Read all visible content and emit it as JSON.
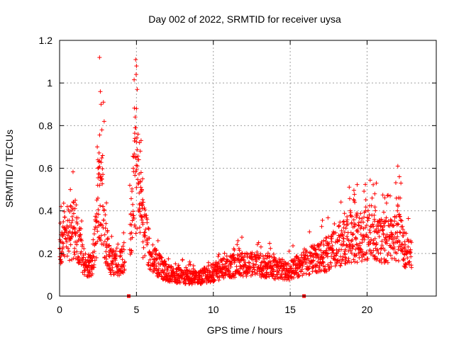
{
  "chart_data": {
    "type": "scatter",
    "title": "Day 002 of 2022, SRMTID for receiver uysa",
    "xlabel": "GPS time / hours",
    "ylabel": "SRMTID / TECUs",
    "xlim": [
      0,
      24.5
    ],
    "ylim": [
      0,
      1.2
    ],
    "xticks": [
      0,
      5,
      10,
      15,
      20
    ],
    "xtick_labels": [
      "0",
      "5",
      "10",
      "15",
      "20"
    ],
    "yticks": [
      0,
      0.2,
      0.4,
      0.6,
      0.8,
      1.0,
      1.2
    ],
    "ytick_labels": [
      "0",
      "0.2",
      "0.4",
      "0.6",
      "0.8",
      "1",
      "1.2"
    ],
    "grid": true,
    "marker": "+",
    "color": "#ff0000",
    "data_gaps_x": [
      4.5,
      15.9
    ],
    "series": [
      {
        "name": "SRMTID",
        "profile_x": [
          0,
          0.3,
          0.7,
          1.0,
          1.4,
          1.8,
          2.1,
          2.4,
          2.6,
          2.75,
          3.0,
          3.3,
          3.6,
          4.0,
          4.4,
          4.7,
          4.85,
          5.0,
          5.2,
          5.5,
          6.0,
          6.5,
          7.0,
          8.0,
          9.0,
          9.5,
          10.0,
          11.0,
          12.0,
          13.0,
          14.0,
          15.0,
          15.8,
          16.5,
          17.5,
          18.5,
          19.0,
          19.5,
          20.0,
          20.5,
          21.0,
          21.5,
          22.0,
          22.5,
          22.9
        ],
        "profile_y": [
          0.2,
          0.27,
          0.3,
          0.32,
          0.2,
          0.13,
          0.16,
          0.3,
          0.55,
          0.45,
          0.25,
          0.17,
          0.16,
          0.16,
          0.2,
          0.35,
          0.6,
          0.55,
          0.4,
          0.3,
          0.18,
          0.14,
          0.11,
          0.09,
          0.085,
          0.1,
          0.11,
          0.14,
          0.15,
          0.15,
          0.13,
          0.12,
          0.16,
          0.17,
          0.2,
          0.25,
          0.28,
          0.28,
          0.3,
          0.3,
          0.27,
          0.25,
          0.3,
          0.22,
          0.2
        ],
        "peaks": [
          {
            "x": 2.6,
            "y": 1.12
          },
          {
            "x": 2.65,
            "y": 0.96
          },
          {
            "x": 2.7,
            "y": 0.9
          },
          {
            "x": 2.85,
            "y": 0.91
          },
          {
            "x": 2.9,
            "y": 0.82
          },
          {
            "x": 2.45,
            "y": 0.7
          },
          {
            "x": 2.55,
            "y": 0.63
          },
          {
            "x": 2.75,
            "y": 0.78
          },
          {
            "x": 2.5,
            "y": 0.6
          },
          {
            "x": 2.8,
            "y": 0.66
          },
          {
            "x": 2.7,
            "y": 0.56
          },
          {
            "x": 2.6,
            "y": 0.52
          },
          {
            "x": 4.95,
            "y": 1.11
          },
          {
            "x": 5.0,
            "y": 1.08
          },
          {
            "x": 4.98,
            "y": 1.04
          },
          {
            "x": 5.05,
            "y": 0.97
          },
          {
            "x": 5.0,
            "y": 0.88
          },
          {
            "x": 4.92,
            "y": 0.84
          },
          {
            "x": 4.95,
            "y": 0.79
          },
          {
            "x": 4.9,
            "y": 0.74
          },
          {
            "x": 5.1,
            "y": 0.76
          },
          {
            "x": 5.2,
            "y": 0.72
          },
          {
            "x": 5.25,
            "y": 0.68
          },
          {
            "x": 5.3,
            "y": 0.73
          },
          {
            "x": 5.15,
            "y": 0.64
          },
          {
            "x": 5.3,
            "y": 0.58
          },
          {
            "x": 5.4,
            "y": 0.55
          },
          {
            "x": 5.35,
            "y": 0.5
          },
          {
            "x": 0.7,
            "y": 0.5
          },
          {
            "x": 0.5,
            "y": 0.42
          },
          {
            "x": 0.1,
            "y": 0.42
          },
          {
            "x": 1.0,
            "y": 0.41
          },
          {
            "x": 22.0,
            "y": 0.61
          },
          {
            "x": 22.1,
            "y": 0.56
          },
          {
            "x": 22.2,
            "y": 0.53
          },
          {
            "x": 20.6,
            "y": 0.53
          },
          {
            "x": 20.5,
            "y": 0.48
          },
          {
            "x": 19.2,
            "y": 0.44
          },
          {
            "x": 21.5,
            "y": 0.47
          },
          {
            "x": 22.15,
            "y": 0.46
          }
        ]
      }
    ]
  }
}
